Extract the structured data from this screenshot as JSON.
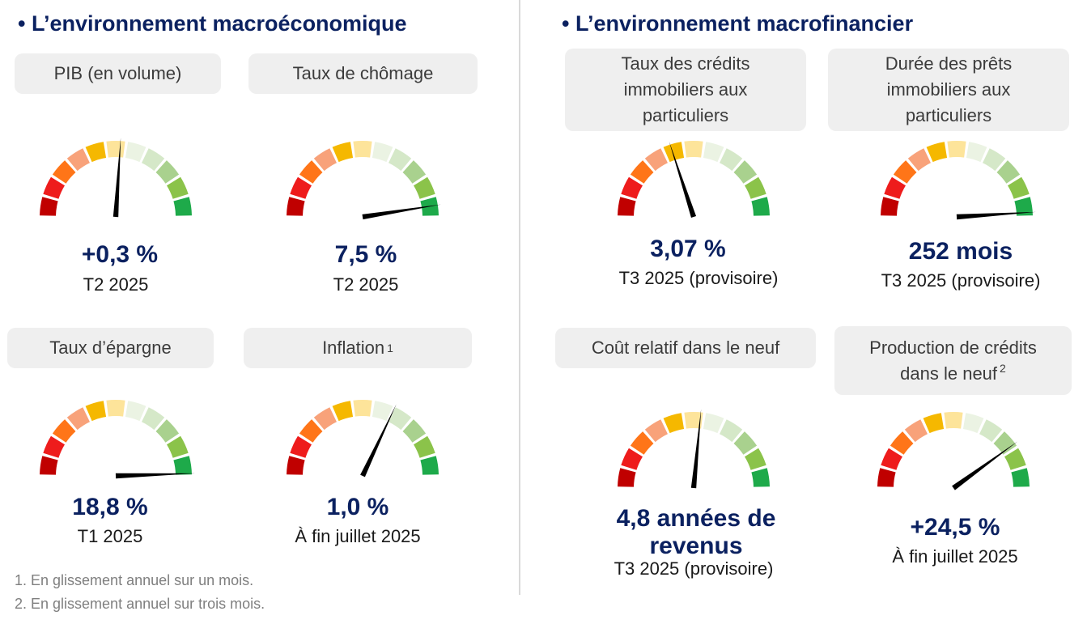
{
  "sections": {
    "macro_title": "• L’environnement macroéconomique",
    "financial_title": "• L’environnement macrofinancier"
  },
  "segment_colors": [
    "#c00000",
    "#ee1c1c",
    "#ff7518",
    "#f8a27a",
    "#f5b800",
    "#fde49a",
    "#ebf3e3",
    "#d5e8c8",
    "#a9d18e",
    "#8bc34a",
    "#1eaa4a"
  ],
  "cards": [
    {
      "id": "pib",
      "label": "PIB (en volume)",
      "footnote_mark": "",
      "value": "+0,3 %",
      "date": "T2 2025",
      "needle": 0.52
    },
    {
      "id": "chomage",
      "label": "Taux de chômage",
      "footnote_mark": "",
      "value": "7,5 %",
      "date": "T2 2025",
      "needle": 0.95
    },
    {
      "id": "epargne",
      "label": "Taux d’épargne",
      "footnote_mark": "",
      "value": "18,8 %",
      "date": "T1 2025",
      "needle": 0.99
    },
    {
      "id": "inflation",
      "label": "Inflation",
      "footnote_mark": "1",
      "value": "1,0 %",
      "date": "À fin juillet 2025",
      "needle": 0.64
    },
    {
      "id": "taux-credits",
      "label": "Taux des crédits immobiliers aux particuliers",
      "footnote_mark": "",
      "value": "3,07 %",
      "date": "T3 2025 (provisoire)",
      "needle": 0.4
    },
    {
      "id": "duree-prets",
      "label": "Durée des prêts immobiliers aux particuliers",
      "footnote_mark": "",
      "value": "252 mois",
      "date": "T3 2025 (provisoire)",
      "needle": 0.98
    },
    {
      "id": "cout-relatif",
      "label": "Coût relatif dans le neuf",
      "footnote_mark": "",
      "value": "4,8 années de revenus",
      "date": "T3 2025 (provisoire)",
      "needle": 0.53
    },
    {
      "id": "production-credits",
      "label": "Production de crédits dans le neuf",
      "footnote_mark": "2",
      "value": "+24,5 %",
      "date": "À fin juillet 2025",
      "needle": 0.8
    }
  ],
  "footnotes": [
    "1. En glissement annuel sur un mois.",
    "2. En glissement annuel sur trois mois."
  ]
}
